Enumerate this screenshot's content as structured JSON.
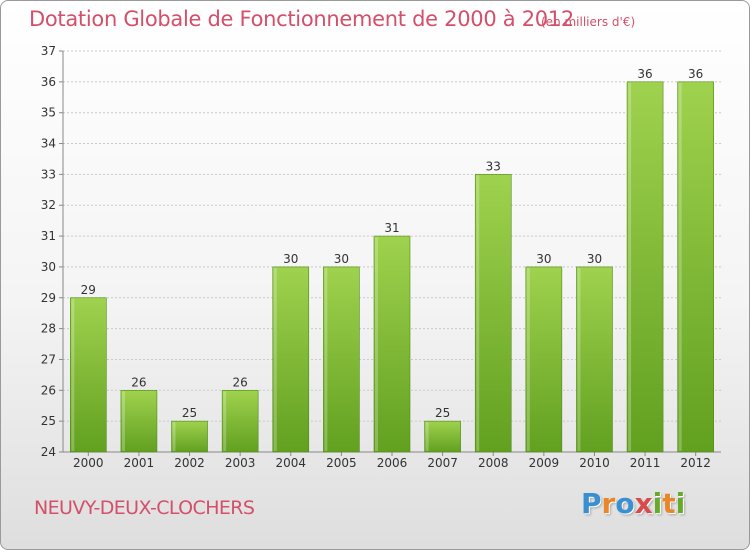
{
  "title": "Dotation Globale de Fonctionnement de 2000 à 2012",
  "units": "(en milliers d'€)",
  "commune": "NEUVY-DEUX-CLOCHERS",
  "logo": {
    "letters": [
      "P",
      "r",
      "o",
      "x",
      "i",
      "t",
      "i"
    ],
    "colors": [
      "#3a8fd0",
      "#e8872a",
      "#3a8fd0",
      "#d94a4a",
      "#6aaa2a",
      "#e8872a",
      "#6aaa2a"
    ]
  },
  "colors": {
    "bar_top": "#9fd24e",
    "bar_bottom": "#62a020",
    "bar_edge": "#4f8a16",
    "title": "#d44f6a",
    "grid": "#c9c9c9"
  },
  "chart_data": {
    "type": "bar",
    "title": "Dotation Globale de Fonctionnement de 2000 à 2012",
    "xlabel": "",
    "ylabel": "",
    "ylim": [
      24,
      37
    ],
    "yticks": [
      24,
      25,
      26,
      27,
      28,
      29,
      30,
      31,
      32,
      33,
      34,
      35,
      36,
      37
    ],
    "grid": true,
    "categories": [
      "2000",
      "2001",
      "2002",
      "2003",
      "2004",
      "2005",
      "2006",
      "2007",
      "2008",
      "2009",
      "2010",
      "2011",
      "2012"
    ],
    "values": [
      29,
      26,
      25,
      26,
      30,
      30,
      31,
      25,
      33,
      30,
      30,
      36,
      36
    ]
  }
}
